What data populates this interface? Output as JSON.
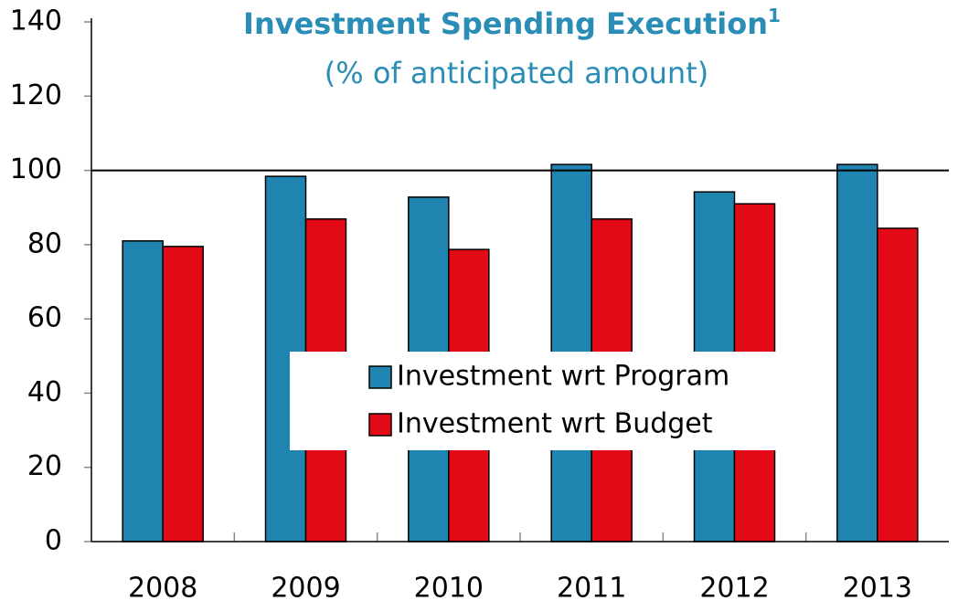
{
  "chart_data": {
    "type": "bar",
    "title": "Investment Spending Execution",
    "title_note": "1",
    "subtitle": "(% of anticipated amount)",
    "categories": [
      "2008",
      "2009",
      "2010",
      "2011",
      "2012",
      "2013"
    ],
    "series": [
      {
        "name": "Investment wrt Program",
        "color": "#1f85b0",
        "values": [
          81,
          98.4,
          92.8,
          101.6,
          94.2,
          101.6
        ]
      },
      {
        "name": "Investment wrt Budget",
        "color": "#e30a17",
        "values": [
          79.5,
          86.9,
          78.7,
          86.9,
          91,
          84.4
        ]
      }
    ],
    "reference_line": 100,
    "ylim": [
      0,
      140
    ],
    "yticks": [
      0,
      20,
      40,
      60,
      80,
      100,
      120,
      140
    ],
    "grid": false
  }
}
